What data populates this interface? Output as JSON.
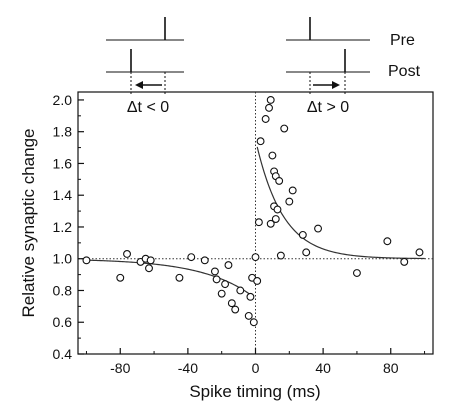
{
  "chart_data": {
    "type": "scatter",
    "xlabel": "Spike timing (ms)",
    "ylabel": "Relative synaptic change",
    "xlim": [
      -105,
      105
    ],
    "ylim": [
      0.4,
      2.05
    ],
    "x_ticks": [
      -80,
      -40,
      0,
      40,
      80
    ],
    "y_ticks": [
      0.4,
      0.6,
      0.8,
      1.0,
      1.2,
      1.4,
      1.6,
      1.8,
      2.0
    ],
    "x_tick_labels": [
      "-80",
      "-40",
      "0",
      "40",
      "80"
    ],
    "y_tick_labels": [
      "0.4",
      "0.6",
      "0.8",
      "1.0",
      "1.2",
      "1.4",
      "1.6",
      "1.8",
      "2.0"
    ],
    "grid": false,
    "reference_lines": {
      "y": 1.0,
      "x": 0
    },
    "series": [
      {
        "marker": "open-circle",
        "points": [
          [
            -100,
            0.99
          ],
          [
            -80,
            0.88
          ],
          [
            -76,
            1.03
          ],
          [
            -68,
            0.98
          ],
          [
            -65,
            1.0
          ],
          [
            -63,
            0.94
          ],
          [
            -62,
            0.99
          ],
          [
            -45,
            0.88
          ],
          [
            -38,
            1.01
          ],
          [
            -30,
            0.99
          ],
          [
            -24,
            0.92
          ],
          [
            -23,
            0.87
          ],
          [
            -20,
            0.78
          ],
          [
            -18,
            0.84
          ],
          [
            -16,
            0.96
          ],
          [
            -14,
            0.72
          ],
          [
            -12,
            0.68
          ],
          [
            -9,
            0.8
          ],
          [
            -4,
            0.64
          ],
          [
            -3,
            0.76
          ],
          [
            -2,
            0.88
          ],
          [
            -1,
            0.6
          ],
          [
            0,
            1.01
          ],
          [
            1,
            0.86
          ],
          [
            2,
            1.23
          ],
          [
            3,
            1.74
          ],
          [
            6,
            1.88
          ],
          [
            8,
            1.95
          ],
          [
            9,
            2.0
          ],
          [
            9,
            1.22
          ],
          [
            10,
            1.65
          ],
          [
            11,
            1.55
          ],
          [
            11,
            1.33
          ],
          [
            12,
            1.52
          ],
          [
            12,
            1.25
          ],
          [
            13,
            1.31
          ],
          [
            14,
            1.49
          ],
          [
            15,
            1.02
          ],
          [
            17,
            1.82
          ],
          [
            20,
            1.36
          ],
          [
            22,
            1.43
          ],
          [
            28,
            1.15
          ],
          [
            30,
            1.04
          ],
          [
            37,
            1.19
          ],
          [
            60,
            0.91
          ],
          [
            78,
            1.11
          ],
          [
            88,
            0.98
          ],
          [
            97,
            1.04
          ]
        ]
      }
    ],
    "fits": [
      {
        "side": "negative",
        "x_range": [
          -100,
          -1
        ],
        "baseline": 1.0,
        "amplitude": -0.25,
        "tau": 30
      },
      {
        "side": "positive",
        "x_range": [
          1,
          100
        ],
        "baseline": 1.0,
        "amplitude": 0.75,
        "tau": 16
      }
    ]
  },
  "insets": {
    "pre_label": "Pre",
    "post_label": "Post",
    "dt_negative_label": "Δt < 0",
    "dt_positive_label": "Δt > 0"
  }
}
